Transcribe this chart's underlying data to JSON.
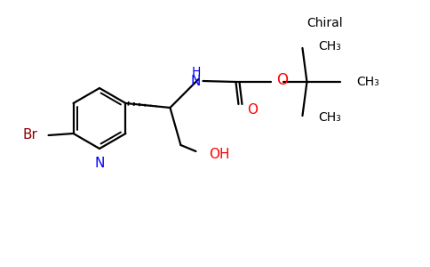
{
  "bg_color": "#ffffff",
  "bond_color": "#000000",
  "n_color": "#0000ff",
  "o_color": "#ff0000",
  "br_color": "#8b0000",
  "chiral_label": "Chiral",
  "ch3_labels": [
    "CH₃",
    "CH₃",
    "CH₃"
  ],
  "nh_label": "H\nN",
  "o_label": "O",
  "n_label": "N",
  "br_label": "Br",
  "oh_label": "OH",
  "figsize": [
    4.84,
    3.0
  ],
  "dpi": 100
}
